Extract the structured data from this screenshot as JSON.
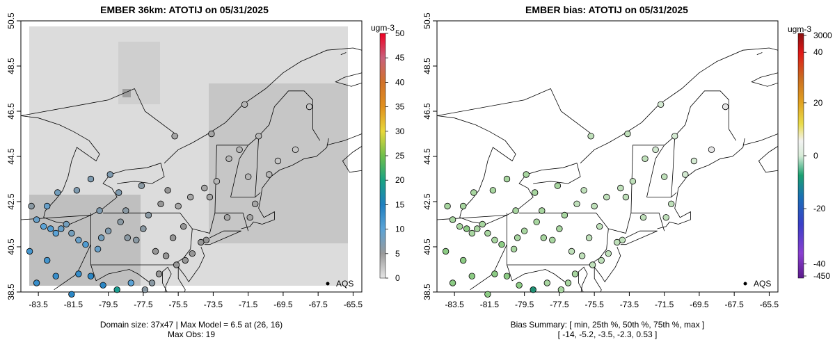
{
  "panels": [
    {
      "title": "EMBER 36km: ATOTIJ on 05/31/2025",
      "footer": [
        "Domain size: 37x47 | Max Model = 6.5 at (26, 16)",
        "Max Obs: 19"
      ],
      "legend_label": "AQS",
      "colorbar": {
        "unit": "ugm-3",
        "ticks": [
          0,
          5,
          10,
          15,
          20,
          25,
          30,
          35,
          40,
          45,
          50
        ]
      }
    },
    {
      "title": "EMBER bias: ATOTIJ on 05/31/2025",
      "footer": [
        "Bias Summary: [ min, 25th %, 50th %, 75th %, max ]",
        "[ -14,   -5.2,   -3.5,   -2.3,   0.53 ]"
      ],
      "legend_label": "AQS",
      "colorbar": {
        "unit": "ugm-3",
        "ticks": [
          3000,
          40,
          20,
          0,
          -20,
          -40,
          -450
        ]
      }
    }
  ],
  "chart_data": [
    {
      "type": "scatter",
      "title": "EMBER 36km: ATOTIJ on 05/31/2025",
      "xlabel": "",
      "ylabel": "",
      "x_ticks": [
        "-83.5",
        "-81.5",
        "-79.5",
        "-77.5",
        "-75.5",
        "-73.5",
        "-71.5",
        "-69.5",
        "-67.5",
        "-65.5"
      ],
      "y_ticks": [
        "38.5",
        "40.5",
        "42.5",
        "44.5",
        "46.5",
        "48.5",
        "50.5"
      ],
      "xlim": [
        -84.5,
        -65.0
      ],
      "ylim": [
        38.5,
        50.5
      ],
      "color_scale": {
        "min": 0,
        "max": 50,
        "unit": "ugm-3"
      },
      "gridded_model_range_ugm3": [
        0,
        6.5
      ],
      "points": [
        {
          "lon": -83.9,
          "lat": 42.3,
          "value": 6
        },
        {
          "lon": -83.6,
          "lat": 41.7,
          "value": 9
        },
        {
          "lon": -83.2,
          "lat": 41.4,
          "value": 10
        },
        {
          "lon": -82.8,
          "lat": 41.3,
          "value": 11
        },
        {
          "lon": -82.5,
          "lat": 41.1,
          "value": 10
        },
        {
          "lon": -82.2,
          "lat": 41.3,
          "value": 9
        },
        {
          "lon": -81.9,
          "lat": 41.5,
          "value": 8
        },
        {
          "lon": -81.6,
          "lat": 41.1,
          "value": 8
        },
        {
          "lon": -81.2,
          "lat": 40.8,
          "value": 9
        },
        {
          "lon": -80.8,
          "lat": 40.6,
          "value": 11
        },
        {
          "lon": -80.1,
          "lat": 40.4,
          "value": 9
        },
        {
          "lon": -79.9,
          "lat": 40.9,
          "value": 8
        },
        {
          "lon": -79.5,
          "lat": 41.2,
          "value": 7
        },
        {
          "lon": -78.8,
          "lat": 41.6,
          "value": 6
        },
        {
          "lon": -78.4,
          "lat": 40.9,
          "value": 6
        },
        {
          "lon": -77.9,
          "lat": 40.8,
          "value": 6
        },
        {
          "lon": -77.5,
          "lat": 41.3,
          "value": 6
        },
        {
          "lon": -77.2,
          "lat": 41.9,
          "value": 6
        },
        {
          "lon": -76.8,
          "lat": 40.3,
          "value": 5
        },
        {
          "lon": -76.2,
          "lat": 40.1,
          "value": 5
        },
        {
          "lon": -75.8,
          "lat": 40.9,
          "value": 5
        },
        {
          "lon": -75.2,
          "lat": 41.4,
          "value": 5
        },
        {
          "lon": -75.5,
          "lat": 42.3,
          "value": 4
        },
        {
          "lon": -74.8,
          "lat": 42.7,
          "value": 4
        },
        {
          "lon": -74.0,
          "lat": 43.1,
          "value": 4
        },
        {
          "lon": -73.7,
          "lat": 42.7,
          "value": 4
        },
        {
          "lon": -73.3,
          "lat": 43.4,
          "value": 3
        },
        {
          "lon": -72.6,
          "lat": 44.4,
          "value": 3
        },
        {
          "lon": -72.0,
          "lat": 44.8,
          "value": 3
        },
        {
          "lon": -71.5,
          "lat": 43.6,
          "value": 3
        },
        {
          "lon": -71.1,
          "lat": 42.4,
          "value": 4
        },
        {
          "lon": -71.4,
          "lat": 41.8,
          "value": 4
        },
        {
          "lon": -72.7,
          "lat": 41.8,
          "value": 4
        },
        {
          "lon": -73.9,
          "lat": 40.8,
          "value": 5
        },
        {
          "lon": -74.2,
          "lat": 40.7,
          "value": 5
        },
        {
          "lon": -74.7,
          "lat": 40.2,
          "value": 5
        },
        {
          "lon": -75.1,
          "lat": 39.9,
          "value": 5
        },
        {
          "lon": -75.6,
          "lat": 39.7,
          "value": 5
        },
        {
          "lon": -76.6,
          "lat": 39.3,
          "value": 5
        },
        {
          "lon": -77.0,
          "lat": 38.9,
          "value": 6
        },
        {
          "lon": -77.4,
          "lat": 38.6,
          "value": 6
        },
        {
          "lon": -70.3,
          "lat": 43.7,
          "value": 3
        },
        {
          "lon": -69.8,
          "lat": 44.3,
          "value": 2
        },
        {
          "lon": -68.8,
          "lat": 44.8,
          "value": 2
        },
        {
          "lon": -68.0,
          "lat": 46.7,
          "value": 2
        },
        {
          "lon": -70.9,
          "lat": 45.4,
          "value": 3
        },
        {
          "lon": -71.7,
          "lat": 46.8,
          "value": 3
        },
        {
          "lon": -73.6,
          "lat": 45.5,
          "value": 4
        },
        {
          "lon": -75.7,
          "lat": 45.4,
          "value": 4
        },
        {
          "lon": -79.4,
          "lat": 43.7,
          "value": 7
        },
        {
          "lon": -80.5,
          "lat": 43.5,
          "value": 7
        },
        {
          "lon": -81.3,
          "lat": 43.0,
          "value": 7
        },
        {
          "lon": -82.4,
          "lat": 42.9,
          "value": 8
        },
        {
          "lon": -83.0,
          "lat": 42.3,
          "value": 9
        },
        {
          "lon": -84.0,
          "lat": 40.3,
          "value": 12
        },
        {
          "lon": -83.0,
          "lat": 39.9,
          "value": 12
        },
        {
          "lon": -82.5,
          "lat": 39.2,
          "value": 13
        },
        {
          "lon": -81.2,
          "lat": 39.3,
          "value": 13
        },
        {
          "lon": -80.5,
          "lat": 39.2,
          "value": 14
        },
        {
          "lon": -79.8,
          "lat": 38.8,
          "value": 14
        },
        {
          "lon": -79.0,
          "lat": 38.6,
          "value": 19
        },
        {
          "lon": -78.2,
          "lat": 38.9,
          "value": 10
        },
        {
          "lon": -81.6,
          "lat": 38.4,
          "value": 14
        },
        {
          "lon": -83.6,
          "lat": 38.9,
          "value": 13
        },
        {
          "lon": -80.0,
          "lat": 42.1,
          "value": 7
        },
        {
          "lon": -78.9,
          "lat": 42.9,
          "value": 7
        },
        {
          "lon": -77.6,
          "lat": 43.2,
          "value": 6
        },
        {
          "lon": -76.1,
          "lat": 43.0,
          "value": 5
        },
        {
          "lon": -76.5,
          "lat": 42.4,
          "value": 5
        },
        {
          "lon": -78.5,
          "lat": 42.1,
          "value": 6
        }
      ]
    },
    {
      "type": "scatter",
      "title": "EMBER bias: ATOTIJ on 05/31/2025",
      "xlabel": "",
      "ylabel": "",
      "x_ticks": [
        "-83.5",
        "-81.5",
        "-79.5",
        "-77.5",
        "-75.5",
        "-73.5",
        "-71.5",
        "-69.5",
        "-67.5",
        "-65.5"
      ],
      "y_ticks": [
        "38.5",
        "40.5",
        "42.5",
        "44.5",
        "46.5",
        "48.5",
        "50.5"
      ],
      "xlim": [
        -84.5,
        -65.0
      ],
      "ylim": [
        38.5,
        50.5
      ],
      "color_scale": {
        "min": -450,
        "max": 3000,
        "unit": "ugm-3"
      },
      "bias_summary": {
        "min": -14,
        "p25": -5.2,
        "p50": -3.5,
        "p75": -2.3,
        "max": 0.53
      },
      "points": [
        {
          "lon": -83.9,
          "lat": 42.3,
          "value": -4
        },
        {
          "lon": -83.6,
          "lat": 41.7,
          "value": -6
        },
        {
          "lon": -83.2,
          "lat": 41.4,
          "value": -6
        },
        {
          "lon": -82.8,
          "lat": 41.3,
          "value": -7
        },
        {
          "lon": -82.5,
          "lat": 41.1,
          "value": -6
        },
        {
          "lon": -82.2,
          "lat": 41.3,
          "value": -5
        },
        {
          "lon": -81.9,
          "lat": 41.5,
          "value": -5
        },
        {
          "lon": -81.6,
          "lat": 41.1,
          "value": -5
        },
        {
          "lon": -81.2,
          "lat": 40.8,
          "value": -5
        },
        {
          "lon": -80.8,
          "lat": 40.6,
          "value": -7
        },
        {
          "lon": -80.1,
          "lat": 40.4,
          "value": -5
        },
        {
          "lon": -79.9,
          "lat": 40.9,
          "value": -4
        },
        {
          "lon": -79.5,
          "lat": 41.2,
          "value": -4
        },
        {
          "lon": -78.8,
          "lat": 41.6,
          "value": -3.5
        },
        {
          "lon": -78.4,
          "lat": 40.9,
          "value": -3.5
        },
        {
          "lon": -77.9,
          "lat": 40.8,
          "value": -3.5
        },
        {
          "lon": -77.5,
          "lat": 41.3,
          "value": -3.5
        },
        {
          "lon": -77.2,
          "lat": 41.9,
          "value": -3.5
        },
        {
          "lon": -76.8,
          "lat": 40.3,
          "value": -3
        },
        {
          "lon": -76.2,
          "lat": 40.1,
          "value": -3
        },
        {
          "lon": -75.8,
          "lat": 40.9,
          "value": -3
        },
        {
          "lon": -75.2,
          "lat": 41.4,
          "value": -3
        },
        {
          "lon": -75.5,
          "lat": 42.3,
          "value": -2.5
        },
        {
          "lon": -74.8,
          "lat": 42.7,
          "value": -2.5
        },
        {
          "lon": -74.0,
          "lat": 43.1,
          "value": -2.3
        },
        {
          "lon": -73.7,
          "lat": 42.7,
          "value": -2.3
        },
        {
          "lon": -73.3,
          "lat": 43.4,
          "value": -2
        },
        {
          "lon": -72.6,
          "lat": 44.4,
          "value": -1.5
        },
        {
          "lon": -72.0,
          "lat": 44.8,
          "value": -1
        },
        {
          "lon": -71.5,
          "lat": 43.6,
          "value": -1.5
        },
        {
          "lon": -71.1,
          "lat": 42.4,
          "value": -2
        },
        {
          "lon": -71.4,
          "lat": 41.8,
          "value": -2
        },
        {
          "lon": -72.7,
          "lat": 41.8,
          "value": -2.3
        },
        {
          "lon": -73.9,
          "lat": 40.8,
          "value": -3
        },
        {
          "lon": -74.2,
          "lat": 40.7,
          "value": -3
        },
        {
          "lon": -74.7,
          "lat": 40.2,
          "value": -3
        },
        {
          "lon": -75.1,
          "lat": 39.9,
          "value": -3
        },
        {
          "lon": -75.6,
          "lat": 39.7,
          "value": -3
        },
        {
          "lon": -76.6,
          "lat": 39.3,
          "value": -3.5
        },
        {
          "lon": -77.0,
          "lat": 38.9,
          "value": -3.5
        },
        {
          "lon": -77.4,
          "lat": 38.6,
          "value": -4
        },
        {
          "lon": -70.3,
          "lat": 43.7,
          "value": -0.5
        },
        {
          "lon": -69.8,
          "lat": 44.3,
          "value": 0
        },
        {
          "lon": -68.8,
          "lat": 44.8,
          "value": 0.3
        },
        {
          "lon": -68.0,
          "lat": 46.7,
          "value": 0.53
        },
        {
          "lon": -70.9,
          "lat": 45.4,
          "value": -0.5
        },
        {
          "lon": -71.7,
          "lat": 46.8,
          "value": -1
        },
        {
          "lon": -73.6,
          "lat": 45.5,
          "value": -2
        },
        {
          "lon": -75.7,
          "lat": 45.4,
          "value": -2
        },
        {
          "lon": -79.4,
          "lat": 43.7,
          "value": -4
        },
        {
          "lon": -80.5,
          "lat": 43.5,
          "value": -4
        },
        {
          "lon": -81.3,
          "lat": 43.0,
          "value": -4
        },
        {
          "lon": -82.4,
          "lat": 42.9,
          "value": -5
        },
        {
          "lon": -83.0,
          "lat": 42.3,
          "value": -6
        },
        {
          "lon": -84.0,
          "lat": 40.3,
          "value": -7
        },
        {
          "lon": -83.0,
          "lat": 39.9,
          "value": -7
        },
        {
          "lon": -82.5,
          "lat": 39.2,
          "value": -8
        },
        {
          "lon": -81.2,
          "lat": 39.3,
          "value": -8
        },
        {
          "lon": -80.5,
          "lat": 39.2,
          "value": -9
        },
        {
          "lon": -79.8,
          "lat": 38.8,
          "value": -8
        },
        {
          "lon": -79.0,
          "lat": 38.6,
          "value": -14
        },
        {
          "lon": -78.2,
          "lat": 38.9,
          "value": -6
        },
        {
          "lon": -81.6,
          "lat": 38.4,
          "value": -8
        },
        {
          "lon": -83.6,
          "lat": 38.9,
          "value": -8
        },
        {
          "lon": -80.0,
          "lat": 42.1,
          "value": -4
        },
        {
          "lon": -78.9,
          "lat": 42.9,
          "value": -4
        },
        {
          "lon": -77.6,
          "lat": 43.2,
          "value": -3.5
        },
        {
          "lon": -76.1,
          "lat": 43.0,
          "value": -3
        },
        {
          "lon": -76.5,
          "lat": 42.4,
          "value": -3
        },
        {
          "lon": -78.5,
          "lat": 42.1,
          "value": -3.5
        }
      ]
    }
  ]
}
